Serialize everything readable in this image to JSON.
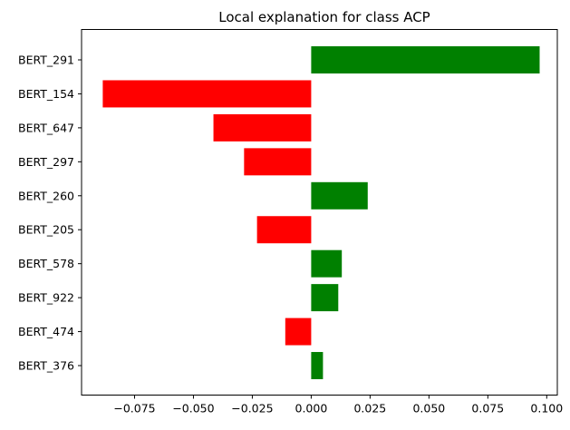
{
  "chart_data": {
    "type": "bar",
    "orientation": "horizontal",
    "title": "Local explanation for class ACP",
    "xlabel": "",
    "ylabel": "",
    "categories": [
      "BERT_291",
      "BERT_154",
      "BERT_647",
      "BERT_297",
      "BERT_260",
      "BERT_205",
      "BERT_578",
      "BERT_922",
      "BERT_474",
      "BERT_376"
    ],
    "values": [
      0.097,
      -0.0885,
      -0.0415,
      -0.0285,
      0.024,
      -0.023,
      0.013,
      0.0115,
      -0.011,
      0.005
    ],
    "xlim": [
      -0.0975,
      0.1045
    ],
    "xticks": [
      -0.075,
      -0.05,
      -0.025,
      0.0,
      0.025,
      0.05,
      0.075,
      0.1
    ],
    "xtick_labels": [
      "−0.075",
      "−0.050",
      "−0.025",
      "0.000",
      "0.025",
      "0.050",
      "0.075",
      "0.100"
    ],
    "grid": false,
    "legend": "none",
    "colors": {
      "positive": "#008000",
      "negative": "#ff0000",
      "axis": "#000000",
      "background": "#ffffff"
    }
  }
}
